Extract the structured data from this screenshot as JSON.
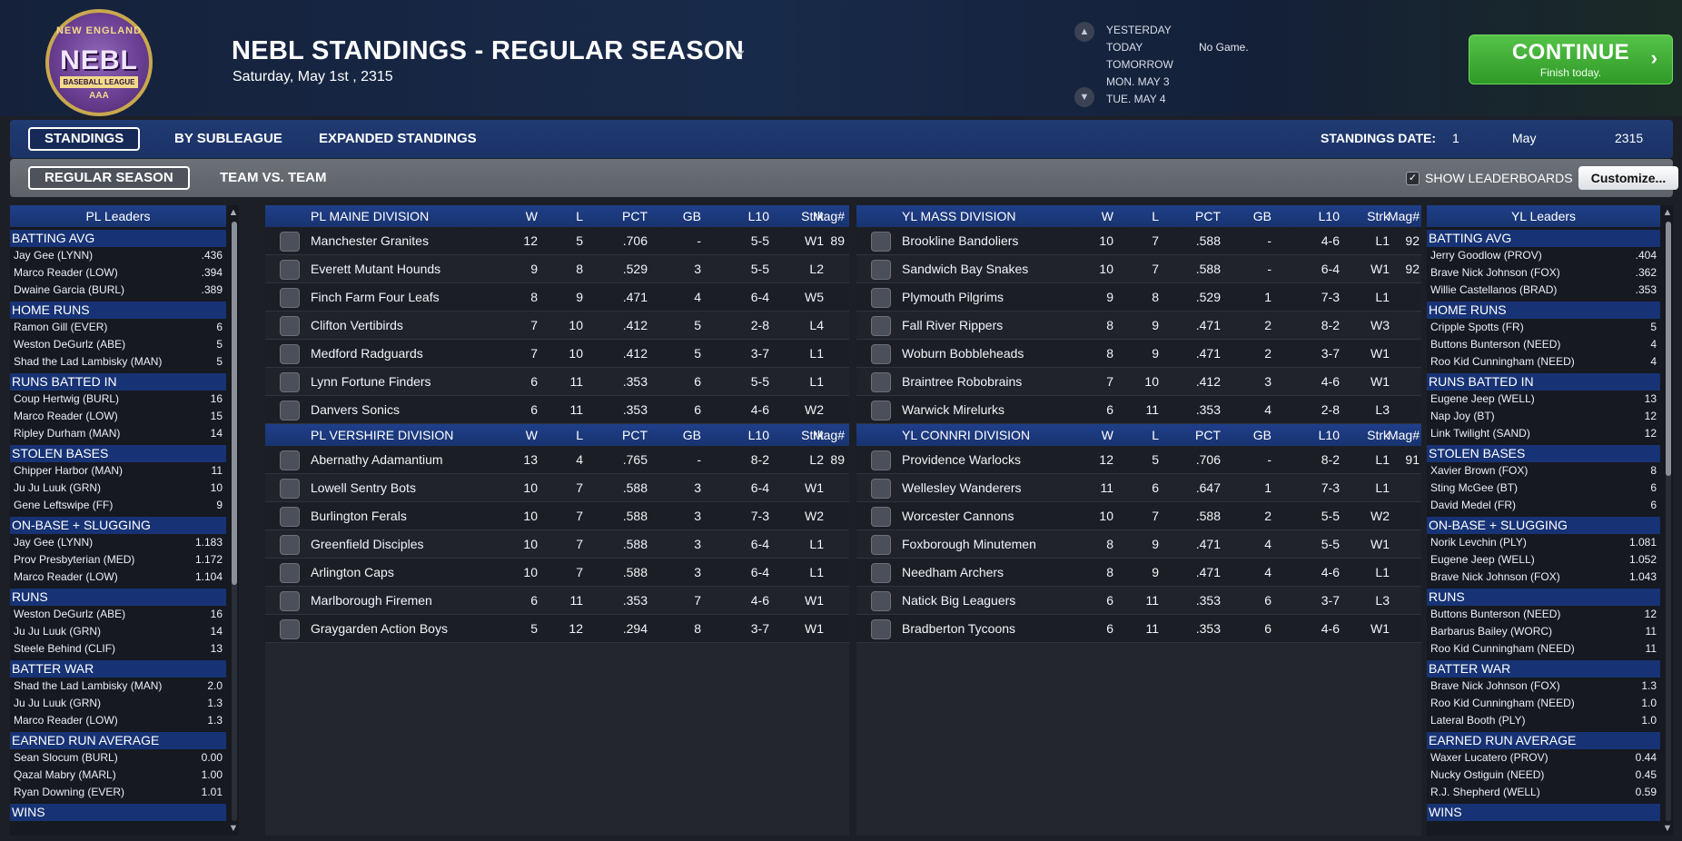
{
  "header": {
    "logo": {
      "ring": "NEW ENGLAND",
      "main": "NEBL",
      "sub": "BASEBALL LEAGUE",
      "level": "AAA"
    },
    "title": "NEBL STANDINGS - REGULAR SEASON",
    "date": "Saturday, May 1st , 2315",
    "days": [
      "YESTERDAY",
      "TODAY",
      "TOMORROW",
      "MON. MAY 3",
      "TUE. MAY 4"
    ],
    "no_game": "No Game.",
    "continue_label": "CONTINUE",
    "continue_sub": "Finish today."
  },
  "tabs": {
    "main": [
      "STANDINGS",
      "BY SUBLEAGUE",
      "EXPANDED STANDINGS"
    ],
    "sub": [
      "REGULAR SEASON",
      "TEAM VS. TEAM"
    ],
    "standings_date_label": "STANDINGS DATE:",
    "standings_day": "1",
    "standings_month": "May",
    "standings_year": "2315",
    "show_leaderboards": "SHOW LEADERBOARDS",
    "customize": "Customize..."
  },
  "columns": [
    "W",
    "L",
    "PCT",
    "GB",
    "L10",
    "Strk",
    "Mag#"
  ],
  "pl_leaders": {
    "title": "PL Leaders",
    "categories": [
      {
        "name": "BATTING AVG",
        "rows": [
          [
            "Jay Gee (LYNN)",
            ".436"
          ],
          [
            "Marco Reader (LOW)",
            ".394"
          ],
          [
            "Dwaine Garcia (BURL)",
            ".389"
          ]
        ]
      },
      {
        "name": "HOME RUNS",
        "rows": [
          [
            "Ramon Gill (EVER)",
            "6"
          ],
          [
            "Weston DeGurlz (ABE)",
            "5"
          ],
          [
            "Shad the Lad Lambisky (MAN)",
            "5"
          ]
        ]
      },
      {
        "name": "RUNS BATTED IN",
        "rows": [
          [
            "Coup Hertwig (BURL)",
            "16"
          ],
          [
            "Marco Reader (LOW)",
            "15"
          ],
          [
            "Ripley Durham (MAN)",
            "14"
          ]
        ]
      },
      {
        "name": "STOLEN BASES",
        "rows": [
          [
            "Chipper Harbor (MAN)",
            "11"
          ],
          [
            "Ju Ju Luuk (GRN)",
            "10"
          ],
          [
            "Gene Leftswipe (FF)",
            "9"
          ]
        ]
      },
      {
        "name": "ON-BASE + SLUGGING",
        "rows": [
          [
            "Jay Gee (LYNN)",
            "1.183"
          ],
          [
            "Prov Presbyterian (MED)",
            "1.172"
          ],
          [
            "Marco Reader (LOW)",
            "1.104"
          ]
        ]
      },
      {
        "name": "RUNS",
        "rows": [
          [
            "Weston DeGurlz (ABE)",
            "16"
          ],
          [
            "Ju Ju Luuk (GRN)",
            "14"
          ],
          [
            "Steele Behind (CLIF)",
            "13"
          ]
        ]
      },
      {
        "name": "BATTER WAR",
        "rows": [
          [
            "Shad the Lad Lambisky (MAN)",
            "2.0"
          ],
          [
            "Ju Ju Luuk (GRN)",
            "1.3"
          ],
          [
            "Marco Reader (LOW)",
            "1.3"
          ]
        ]
      },
      {
        "name": "EARNED RUN AVERAGE",
        "rows": [
          [
            "Sean Slocum (BURL)",
            "0.00"
          ],
          [
            "Qazal Mabry (MARL)",
            "1.00"
          ],
          [
            "Ryan Downing (EVER)",
            "1.01"
          ]
        ]
      },
      {
        "name": "WINS",
        "rows": []
      }
    ]
  },
  "yl_leaders": {
    "title": "YL Leaders",
    "categories": [
      {
        "name": "BATTING AVG",
        "rows": [
          [
            "Jerry Goodlow (PROV)",
            ".404"
          ],
          [
            "Brave Nick Johnson (FOX)",
            ".362"
          ],
          [
            "Willie Castellanos (BRAD)",
            ".353"
          ]
        ]
      },
      {
        "name": "HOME RUNS",
        "rows": [
          [
            "Cripple Spotts (FR)",
            "5"
          ],
          [
            "Buttons Bunterson (NEED)",
            "4"
          ],
          [
            "Roo Kid Cunningham (NEED)",
            "4"
          ]
        ]
      },
      {
        "name": "RUNS BATTED IN",
        "rows": [
          [
            "Eugene Jeep (WELL)",
            "13"
          ],
          [
            "Nap Joy (BT)",
            "12"
          ],
          [
            "Link Twilight (SAND)",
            "12"
          ]
        ]
      },
      {
        "name": "STOLEN BASES",
        "rows": [
          [
            "Xavier Brown (FOX)",
            "8"
          ],
          [
            "Sting McGee (BT)",
            "6"
          ],
          [
            "David Medel (FR)",
            "6"
          ]
        ]
      },
      {
        "name": "ON-BASE + SLUGGING",
        "rows": [
          [
            "Norik Levchin (PLY)",
            "1.081"
          ],
          [
            "Eugene Jeep (WELL)",
            "1.052"
          ],
          [
            "Brave Nick Johnson (FOX)",
            "1.043"
          ]
        ]
      },
      {
        "name": "RUNS",
        "rows": [
          [
            "Buttons Bunterson (NEED)",
            "12"
          ],
          [
            "Barbarus Bailey (WORC)",
            "11"
          ],
          [
            "Roo Kid Cunningham (NEED)",
            "11"
          ]
        ]
      },
      {
        "name": "BATTER WAR",
        "rows": [
          [
            "Brave Nick Johnson (FOX)",
            "1.3"
          ],
          [
            "Roo Kid Cunningham (NEED)",
            "1.0"
          ],
          [
            "Lateral Booth (PLY)",
            "1.0"
          ]
        ]
      },
      {
        "name": "EARNED RUN AVERAGE",
        "rows": [
          [
            "Waxer Lucatero (PROV)",
            "0.44"
          ],
          [
            "Nucky Ostiguin (NEED)",
            "0.45"
          ],
          [
            "R.J. Shepherd (WELL)",
            "0.59"
          ]
        ]
      },
      {
        "name": "WINS",
        "rows": []
      }
    ]
  },
  "divisions": {
    "pl": [
      {
        "name": "PL MAINE DIVISION",
        "teams": [
          [
            "Manchester Granites",
            "12",
            "5",
            ".706",
            "-",
            "5-5",
            "W1",
            "89"
          ],
          [
            "Everett Mutant Hounds",
            "9",
            "8",
            ".529",
            "3",
            "5-5",
            "L2",
            ""
          ],
          [
            "Finch Farm Four Leafs",
            "8",
            "9",
            ".471",
            "4",
            "6-4",
            "W5",
            ""
          ],
          [
            "Clifton Vertibirds",
            "7",
            "10",
            ".412",
            "5",
            "2-8",
            "L4",
            ""
          ],
          [
            "Medford Radguards",
            "7",
            "10",
            ".412",
            "5",
            "3-7",
            "L1",
            ""
          ],
          [
            "Lynn Fortune Finders",
            "6",
            "11",
            ".353",
            "6",
            "5-5",
            "L1",
            ""
          ],
          [
            "Danvers Sonics",
            "6",
            "11",
            ".353",
            "6",
            "4-6",
            "W2",
            ""
          ]
        ]
      },
      {
        "name": "PL VERSHIRE DIVISION",
        "teams": [
          [
            "Abernathy Adamantium",
            "13",
            "4",
            ".765",
            "-",
            "8-2",
            "L2",
            "89"
          ],
          [
            "Lowell Sentry Bots",
            "10",
            "7",
            ".588",
            "3",
            "6-4",
            "W1",
            ""
          ],
          [
            "Burlington Ferals",
            "10",
            "7",
            ".588",
            "3",
            "7-3",
            "W2",
            ""
          ],
          [
            "Greenfield Disciples",
            "10",
            "7",
            ".588",
            "3",
            "6-4",
            "L1",
            ""
          ],
          [
            "Arlington Caps",
            "10",
            "7",
            ".588",
            "3",
            "6-4",
            "L1",
            ""
          ],
          [
            "Marlborough Firemen",
            "6",
            "11",
            ".353",
            "7",
            "4-6",
            "W1",
            ""
          ],
          [
            "Graygarden Action Boys",
            "5",
            "12",
            ".294",
            "8",
            "3-7",
            "W1",
            ""
          ]
        ]
      }
    ],
    "yl": [
      {
        "name": "YL MASS DIVISION",
        "teams": [
          [
            "Brookline Bandoliers",
            "10",
            "7",
            ".588",
            "-",
            "4-6",
            "L1",
            "92"
          ],
          [
            "Sandwich Bay Snakes",
            "10",
            "7",
            ".588",
            "-",
            "6-4",
            "W1",
            "92"
          ],
          [
            "Plymouth Pilgrims",
            "9",
            "8",
            ".529",
            "1",
            "7-3",
            "L1",
            ""
          ],
          [
            "Fall River Rippers",
            "8",
            "9",
            ".471",
            "2",
            "8-2",
            "W3",
            ""
          ],
          [
            "Woburn Bobbleheads",
            "8",
            "9",
            ".471",
            "2",
            "3-7",
            "W1",
            ""
          ],
          [
            "Braintree Robobrains",
            "7",
            "10",
            ".412",
            "3",
            "4-6",
            "W1",
            ""
          ],
          [
            "Warwick Mirelurks",
            "6",
            "11",
            ".353",
            "4",
            "2-8",
            "L3",
            ""
          ]
        ]
      },
      {
        "name": "YL CONNRI DIVISION",
        "teams": [
          [
            "Providence Warlocks",
            "12",
            "5",
            ".706",
            "-",
            "8-2",
            "L1",
            "91"
          ],
          [
            "Wellesley Wanderers",
            "11",
            "6",
            ".647",
            "1",
            "7-3",
            "L1",
            ""
          ],
          [
            "Worcester Cannons",
            "10",
            "7",
            ".588",
            "2",
            "5-5",
            "W2",
            ""
          ],
          [
            "Foxborough Minutemen",
            "8",
            "9",
            ".471",
            "4",
            "5-5",
            "W1",
            ""
          ],
          [
            "Needham Archers",
            "8",
            "9",
            ".471",
            "4",
            "4-6",
            "L1",
            ""
          ],
          [
            "Natick Big Leaguers",
            "6",
            "11",
            ".353",
            "6",
            "3-7",
            "L3",
            ""
          ],
          [
            "Bradberton Tycoons",
            "6",
            "11",
            ".353",
            "6",
            "4-6",
            "W1",
            ""
          ]
        ]
      }
    ]
  }
}
